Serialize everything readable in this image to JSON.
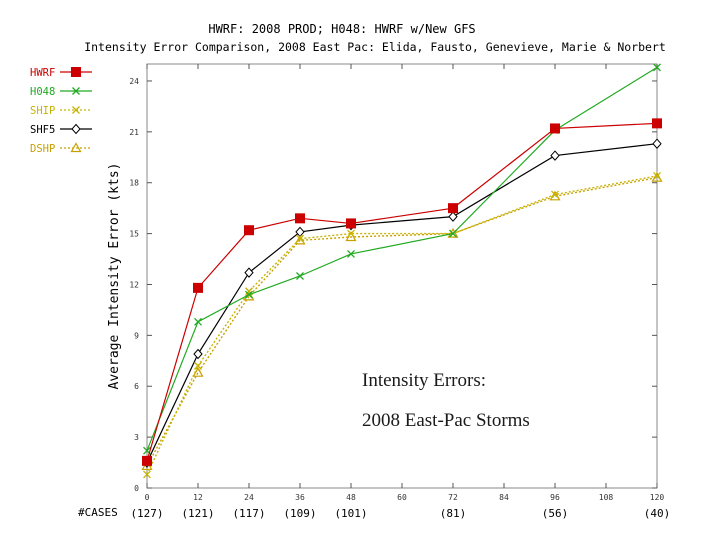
{
  "titles": {
    "line1": "HWRF: 2008 PROD; H048: HWRF w/New GFS",
    "line2": "Intensity Error Comparison, 2008 East Pac: Elida, Fausto, Genevieve, Marie & Norbert"
  },
  "annotation": {
    "line1": "Intensity Errors:",
    "line2": "2008 East-Pac Storms"
  },
  "cases": {
    "label": "#CASES",
    "values": [
      "(127)",
      "(121)",
      "(117)",
      "(109)",
      "(101)",
      "(81)",
      "(56)",
      "(40)"
    ],
    "at_x": [
      0,
      12,
      24,
      36,
      48,
      72,
      96,
      120
    ]
  },
  "chart_data": {
    "type": "line",
    "title": "Intensity Error Comparison, 2008 East Pac",
    "xlabel": "",
    "ylabel": "Average Intensity Error (kts)",
    "x": [
      0,
      12,
      24,
      36,
      48,
      72,
      96,
      120
    ],
    "xticks": [
      0,
      12,
      24,
      36,
      48,
      60,
      72,
      84,
      96,
      108,
      120
    ],
    "xtick_labels": [
      "0",
      "12",
      "24",
      "36",
      "48",
      "60",
      "72",
      "84",
      "96",
      "108",
      "120"
    ],
    "yticks": [
      0,
      3,
      6,
      9,
      12,
      15,
      18,
      21,
      24
    ],
    "ytick_labels": [
      "0",
      "3",
      "6",
      "9",
      "12",
      "15",
      "18",
      "21",
      "24"
    ],
    "xlim": [
      0,
      120
    ],
    "ylim": [
      0,
      25
    ],
    "legend": "top-left outside",
    "series": [
      {
        "name": "HWRF",
        "color": "#cc0000",
        "marker": "square",
        "dash": "solid",
        "values": [
          1.6,
          11.8,
          15.2,
          15.9,
          15.6,
          16.5,
          21.2,
          21.5
        ]
      },
      {
        "name": "H048",
        "color": "#22aa22",
        "marker": "x",
        "dash": "solid",
        "values": [
          2.2,
          9.8,
          11.4,
          12.5,
          13.8,
          15.0,
          21.1,
          24.8
        ]
      },
      {
        "name": "SHIP",
        "color": "#c8b400",
        "marker": "x",
        "dash": "dotted",
        "values": [
          0.8,
          7.2,
          11.6,
          14.7,
          15.0,
          15.0,
          17.3,
          18.4
        ]
      },
      {
        "name": "SHF5",
        "color": "#000000",
        "marker": "diamond",
        "dash": "solid",
        "values": [
          1.5,
          7.9,
          12.7,
          15.1,
          15.5,
          16.0,
          19.6,
          20.3
        ]
      },
      {
        "name": "DSHP",
        "color": "#c8a000",
        "marker": "triangle",
        "dash": "dotted",
        "values": [
          1.3,
          6.8,
          11.3,
          14.6,
          14.8,
          15.0,
          17.2,
          18.3
        ]
      }
    ]
  }
}
